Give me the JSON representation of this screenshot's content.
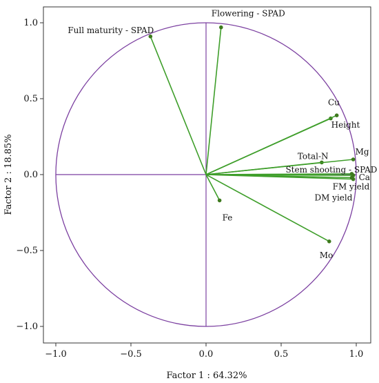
{
  "chart_data": {
    "type": "scatter",
    "subtype": "correlation-circle",
    "title": "",
    "xlabel": "Factor 1 : 64.32%",
    "ylabel": "Factor 2 : 18.85%",
    "xlim": [
      -1.0,
      1.0
    ],
    "ylim": [
      -1.0,
      1.0
    ],
    "xticks": [
      "−1.0",
      "−0.5",
      "0.0",
      "0.5",
      "1.0"
    ],
    "yticks": [
      "1.0",
      "0.5",
      "0.0",
      "−0.5",
      "−1.0"
    ],
    "grid": false,
    "unit_circle": true,
    "colors": {
      "circle": "#7b3fa0",
      "vector": "#3e9e2a",
      "point": "#3e7a1e"
    },
    "points": [
      {
        "name": "Full maturity - SPAD",
        "x": -0.37,
        "y": 0.91
      },
      {
        "name": "Flowering - SPAD",
        "x": 0.1,
        "y": 0.97
      },
      {
        "name": "Cu",
        "x": 0.83,
        "y": 0.37
      },
      {
        "name": "Height",
        "x": 0.87,
        "y": 0.39
      },
      {
        "name": "Total-N",
        "x": 0.77,
        "y": 0.08
      },
      {
        "name": "Mg",
        "x": 0.98,
        "y": 0.1
      },
      {
        "name": "Stem shooting - SPAD",
        "x": 0.97,
        "y": 0.005
      },
      {
        "name": "Ca",
        "x": 0.98,
        "y": -0.005
      },
      {
        "name": "FM yield",
        "x": 0.98,
        "y": -0.03
      },
      {
        "name": "DM yield",
        "x": 0.97,
        "y": -0.02
      },
      {
        "name": "Fe",
        "x": 0.09,
        "y": -0.17
      },
      {
        "name": "Mo",
        "x": 0.82,
        "y": -0.44
      }
    ]
  }
}
